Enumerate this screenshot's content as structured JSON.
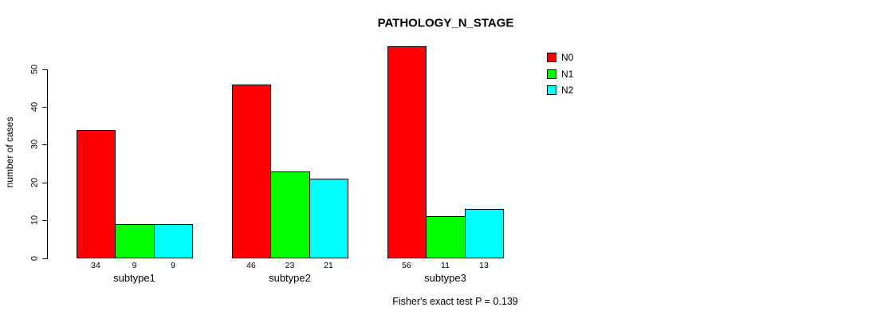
{
  "chart_data": {
    "type": "bar",
    "title": "PATHOLOGY_N_STAGE",
    "xlabel": "",
    "ylabel": "number of cases",
    "categories": [
      "subtype1",
      "subtype2",
      "subtype3"
    ],
    "series": [
      {
        "name": "N0",
        "color": "#FF0000",
        "values": [
          34,
          46,
          56
        ]
      },
      {
        "name": "N1",
        "color": "#00FF00",
        "values": [
          9,
          23,
          11
        ]
      },
      {
        "name": "N2",
        "color": "#00FFFF",
        "values": [
          9,
          21,
          13
        ]
      }
    ],
    "yticks": [
      0,
      10,
      20,
      30,
      40,
      50
    ],
    "ylim": [
      0,
      59
    ],
    "grid": false,
    "bar_value_labels_shown": true,
    "legend_position": "top-right",
    "bar_border_color": "#000000",
    "background_color": "#FFFFFF",
    "annotation": "Fisher's exact test P = 0.139"
  }
}
